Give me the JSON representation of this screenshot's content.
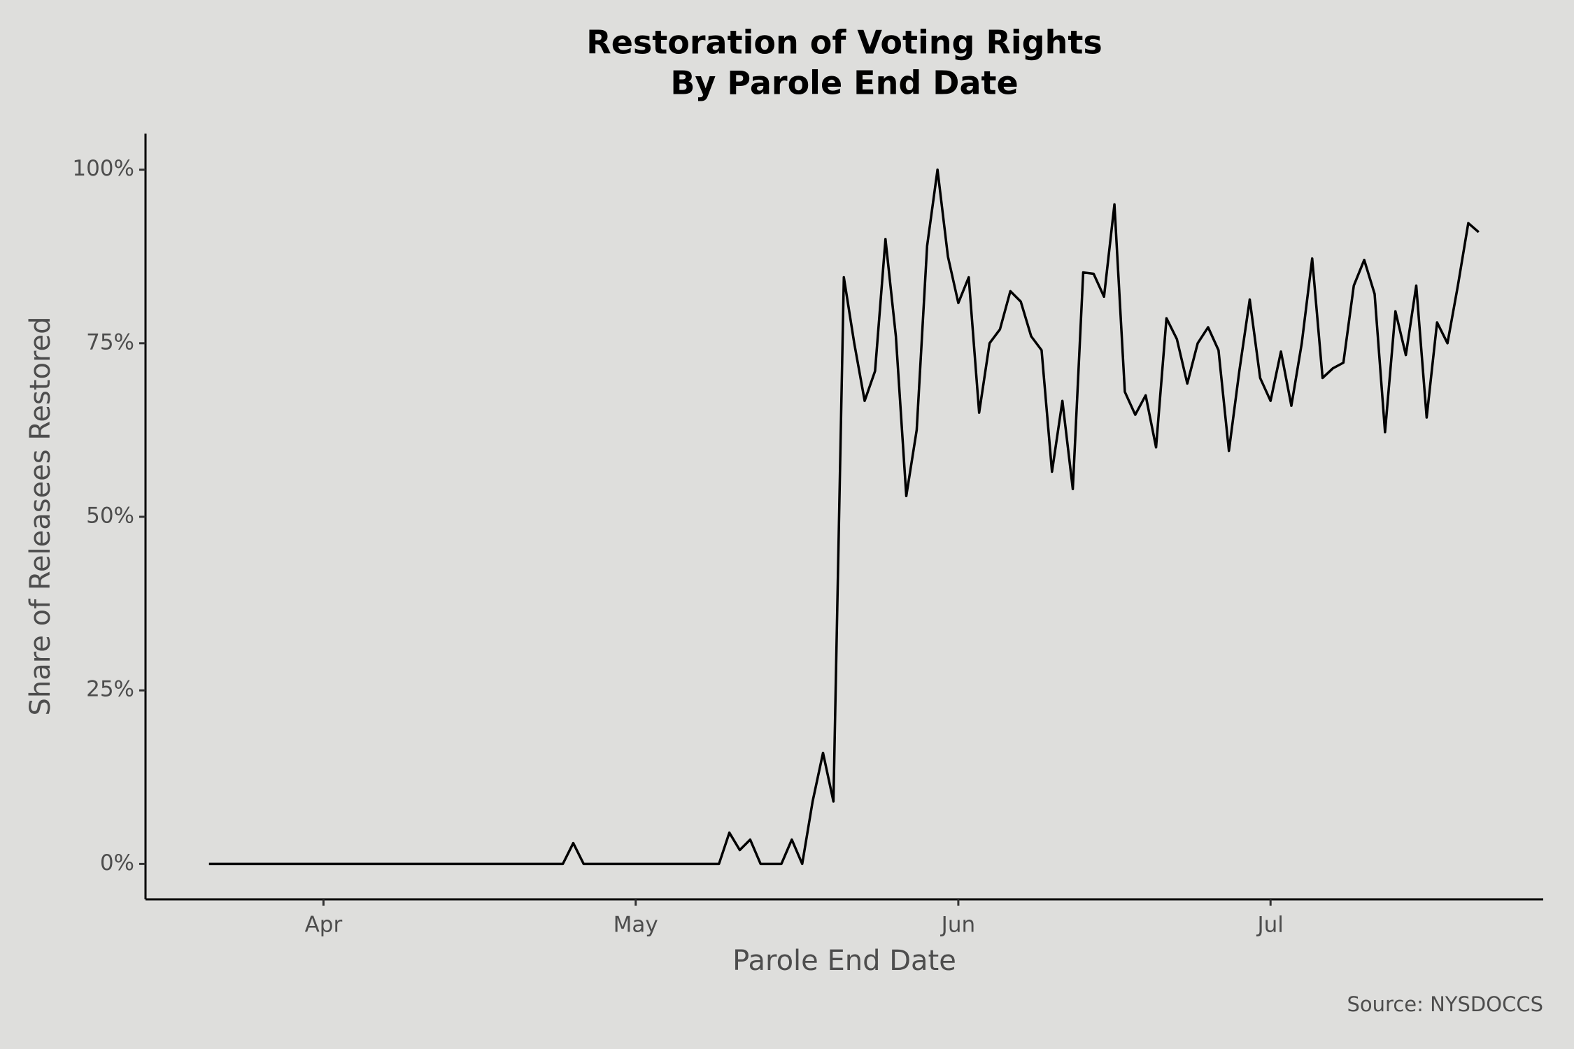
{
  "chart_data": {
    "type": "line",
    "title": [
      "Restoration of Voting Rights",
      "By Parole End Date"
    ],
    "x_label": "Parole End Date",
    "y_label": "Share of Releasees Restored",
    "caption": "Source: NYSDOCCS",
    "color": "#000000",
    "grid": false,
    "x": [
      80,
      81,
      82,
      83,
      84,
      85,
      86,
      87,
      88,
      89,
      90,
      91,
      92,
      93,
      94,
      95,
      96,
      97,
      98,
      99,
      100,
      101,
      102,
      103,
      104,
      105,
      106,
      107,
      108,
      109,
      110,
      111,
      112,
      113,
      114,
      115,
      116,
      117,
      118,
      119,
      120,
      121,
      122,
      123,
      124,
      125,
      126,
      127,
      128,
      129,
      130,
      131,
      132,
      133,
      134,
      135,
      136,
      137,
      138,
      139,
      140,
      141,
      142,
      143,
      144,
      145,
      146,
      147,
      148,
      149,
      150,
      151,
      152,
      153,
      154,
      155,
      156,
      157,
      158,
      159,
      160,
      161,
      162,
      163,
      164,
      165,
      166,
      167,
      168,
      169,
      170,
      171,
      172,
      173,
      174,
      175,
      176,
      177,
      178,
      179,
      180,
      181,
      182,
      183,
      184,
      185,
      186,
      187,
      188,
      189,
      190,
      191,
      192,
      193,
      194,
      195,
      196,
      197,
      198,
      199,
      200,
      201,
      202
    ],
    "values": [
      0,
      0,
      0,
      0,
      0,
      0,
      0,
      0,
      0,
      0,
      0,
      0,
      0,
      0,
      0,
      0,
      0,
      0,
      0,
      0,
      0,
      0,
      0,
      0,
      0,
      0,
      0,
      0,
      0,
      0,
      0,
      0,
      0,
      0,
      0,
      3,
      0,
      0,
      0,
      0,
      0,
      0,
      0,
      0,
      0,
      0,
      0,
      0,
      0,
      0,
      4.5,
      2,
      3.5,
      0,
      0,
      0,
      3.5,
      0,
      9,
      16,
      9,
      84.5,
      75,
      66.7,
      71,
      90,
      76,
      53,
      62.5,
      89,
      100,
      87.5,
      80.8,
      84.5,
      65,
      75,
      77,
      82.5,
      81,
      76,
      74,
      56.5,
      66.7,
      54,
      85.2,
      85,
      81.7,
      95,
      68,
      64.7,
      67.5,
      60,
      78.6,
      75.6,
      69.2,
      75,
      77.3,
      74,
      59.5,
      71,
      81.3,
      70,
      66.7,
      73.8,
      66,
      75,
      87.2,
      70,
      71.4,
      72.2,
      83.3,
      87,
      82.1,
      62.2,
      79.6,
      73.3,
      83.3,
      64.3,
      78,
      75,
      83.3,
      92.3,
      91
    ],
    "xlim": [
      73.9,
      208.2
    ],
    "xticks": [
      {
        "value": 91,
        "label": "Apr"
      },
      {
        "value": 121,
        "label": "May"
      },
      {
        "value": 152,
        "label": "Jun"
      },
      {
        "value": 182,
        "label": "Jul"
      }
    ],
    "ylim": [
      -5.1,
      105.2
    ],
    "yticks": [
      {
        "value": 0,
        "label": "0%"
      },
      {
        "value": 25,
        "label": "25%"
      },
      {
        "value": 50,
        "label": "50%"
      },
      {
        "value": 75,
        "label": "75%"
      },
      {
        "value": 100,
        "label": "100%"
      }
    ]
  }
}
